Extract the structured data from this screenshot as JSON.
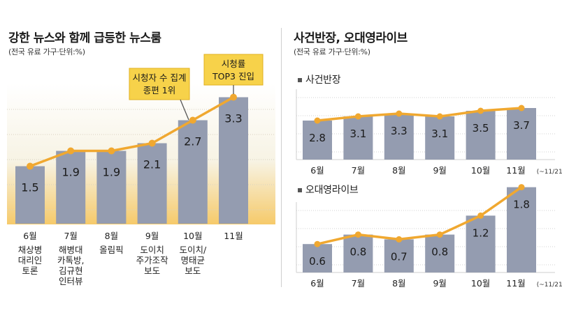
{
  "left": {
    "title": "강한 뉴스와 함께 급등한 뉴스룸",
    "subtitle": "(전국 유료 가구·단위:%)",
    "callout1": [
      "시청자 수 집계",
      "종편 1위"
    ],
    "callout2": [
      "시청률",
      "TOP3 진입"
    ]
  },
  "right": {
    "title": "사건반장, 오대영라이브",
    "subtitle": "(전국 유료 가구·단위:%)",
    "chart1_label": "사건반장",
    "chart2_label": "오대영라이브"
  },
  "colors": {
    "bar": "#949cb0",
    "line": "#f0a830",
    "callout": "#f7d24a"
  },
  "chart_data": [
    {
      "type": "bar",
      "title": "강한 뉴스와 함께 급등한 뉴스룸",
      "categories": [
        "6월",
        "7월",
        "8월",
        "9월",
        "10월",
        "11월"
      ],
      "category_notes": [
        [
          "채상병",
          "대리인",
          "토론"
        ],
        [
          "해병대",
          "카톡방,",
          "김규현",
          "인터뷰"
        ],
        [
          "올림픽"
        ],
        [
          "도이치",
          "주가조작",
          "보도"
        ],
        [
          "도이치/",
          "명태균",
          "보도"
        ],
        []
      ],
      "values": [
        1.5,
        1.9,
        1.9,
        2.1,
        2.7,
        3.3
      ],
      "value_labels": [
        "1.5",
        "1.9",
        "1.9",
        "2.1",
        "2.7",
        "3.3"
      ]
    },
    {
      "type": "bar",
      "title": "사건반장",
      "categories": [
        "6월",
        "7월",
        "8월",
        "9월",
        "10월",
        "11월"
      ],
      "last_note": "(~11/21)",
      "values": [
        2.8,
        3.1,
        3.3,
        3.1,
        3.5,
        3.7
      ],
      "value_labels": [
        "2.8",
        "3.1",
        "3.3",
        "3.1",
        "3.5",
        "3.7"
      ]
    },
    {
      "type": "bar",
      "title": "오대영라이브",
      "categories": [
        "6월",
        "7월",
        "8월",
        "9월",
        "10월",
        "11월"
      ],
      "last_note": "(~11/21)",
      "values": [
        0.6,
        0.8,
        0.7,
        0.8,
        1.2,
        1.8
      ],
      "value_labels": [
        "0.6",
        "0.8",
        "0.7",
        "0.8",
        "1.2",
        "1.8"
      ]
    }
  ]
}
